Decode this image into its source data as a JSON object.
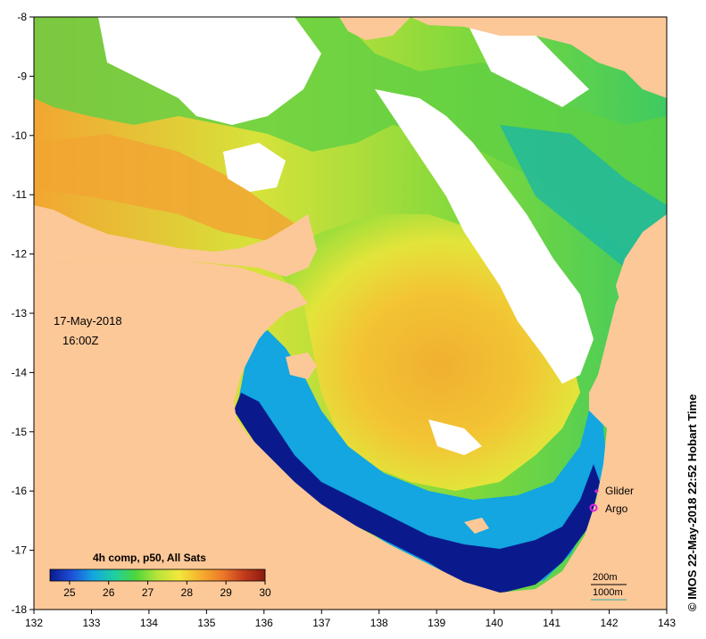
{
  "map": {
    "lon_range": [
      132,
      143
    ],
    "lat_range": [
      -18,
      -8
    ],
    "x_ticks": [
      "132",
      "133",
      "134",
      "135",
      "136",
      "137",
      "138",
      "139",
      "140",
      "141",
      "142",
      "143"
    ],
    "y_ticks": [
      "-8",
      "-9",
      "-10",
      "-11",
      "-12",
      "-13",
      "-14",
      "-15",
      "-16",
      "-17",
      "-18"
    ],
    "date": "17-May-2018",
    "time": "16:00Z",
    "credit": "© IMOS 22-May-2018 22:52 Hobart Time",
    "colors": {
      "land": "#fcc898",
      "cloud": "#ffffff",
      "shallow_blue": "#0a1a8c"
    }
  },
  "colorbar": {
    "title": "4h comp, p50, All Sats",
    "ticks": [
      "25",
      "26",
      "27",
      "28",
      "29",
      "30"
    ],
    "range": [
      24.5,
      30
    ],
    "stops": [
      "#0a1a8c",
      "#1e4fd8",
      "#13a6e0",
      "#1fcfa0",
      "#4fd63a",
      "#b8e43a",
      "#f2e83a",
      "#f5b02e",
      "#ee7a2a",
      "#c43c1c",
      "#8a1a10"
    ]
  },
  "legend": {
    "glider": "Glider",
    "argo": "Argo",
    "glider_color": "#d020d0",
    "argo_color": "#e020e0"
  },
  "contours": {
    "label_200": "200m",
    "label_1000": "1000m",
    "color_200": "#000000",
    "color_1000": "#2ab0a0"
  }
}
